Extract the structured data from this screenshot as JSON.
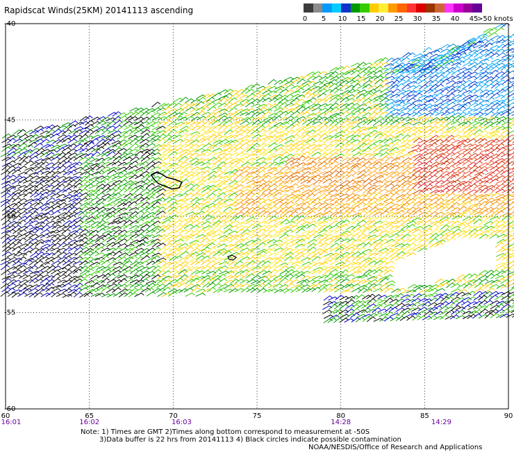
{
  "title": "Rapidscat Winds(25KM) 20141113 ascending",
  "colorbar": {
    "colors": [
      "#3c3c3c",
      "#8c8c8c",
      "#0099ff",
      "#00ccff",
      "#1133cc",
      "#009900",
      "#33cc00",
      "#ffcc00",
      "#ffee33",
      "#ff9900",
      "#ff6600",
      "#ff3333",
      "#dd0000",
      "#993300",
      "#cc6633",
      "#ff33ff",
      "#cc00cc",
      "#990099",
      "#660099"
    ],
    "labels": [
      "0",
      "5",
      "10",
      "15",
      "20",
      "25",
      "30",
      "35",
      "40",
      "45"
    ],
    "units_label": ">50 knots"
  },
  "chart_data": {
    "type": "scatter",
    "title": "Rapidscat Winds(25KM) 20141113 ascending",
    "xlim": [
      60,
      90
    ],
    "ylim": [
      -60,
      -40
    ],
    "xticks": [
      "60",
      "65",
      "70",
      "75",
      "80",
      "85",
      "90"
    ],
    "yticks": [
      "-40",
      "-45",
      "-50",
      "-55",
      "-60"
    ],
    "time_labels": [
      {
        "lon": 60,
        "text": "16:01"
      },
      {
        "lon": 65,
        "text": "16:02"
      },
      {
        "lon": 70.5,
        "text": "16:03"
      },
      {
        "lon": 80,
        "text": "14:28"
      },
      {
        "lon": 86,
        "text": "14:29"
      }
    ],
    "grid": true,
    "series_color_scale_knots": [
      0,
      5,
      10,
      15,
      20,
      25,
      30,
      35,
      40,
      45,
      50
    ],
    "note_lines": [
      "Note: 1) Times are GMT 2)Times along bottom correspond to measurement at -50S",
      "3)Data buffer is 22 hrs from 20141113 4) Black circles indicate possible contamination",
      "NOAA/NESDIS/Office of Research and Applications"
    ]
  }
}
